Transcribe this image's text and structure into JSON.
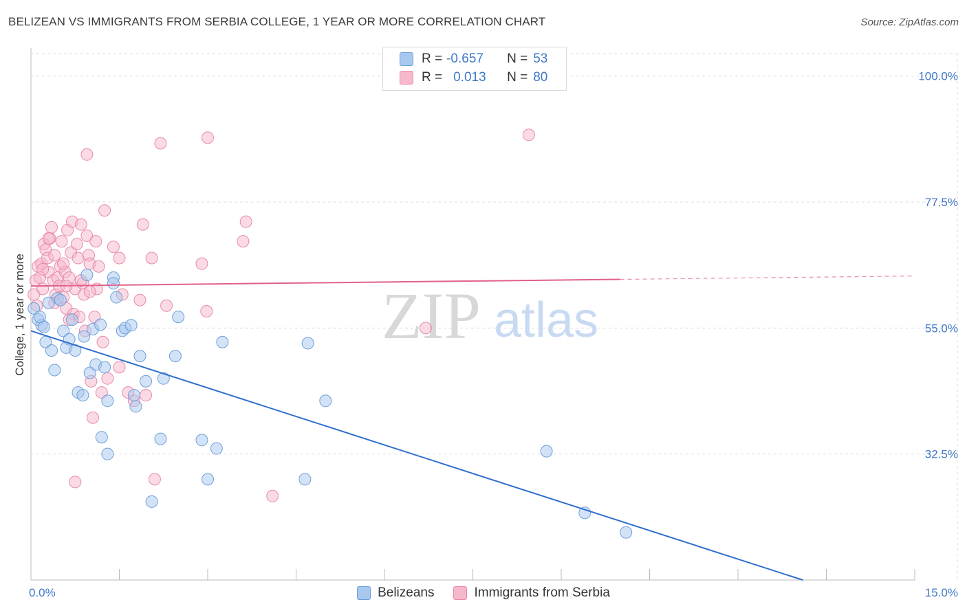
{
  "title": "BELIZEAN VS IMMIGRANTS FROM SERBIA COLLEGE, 1 YEAR OR MORE CORRELATION CHART",
  "source": "Source: ZipAtlas.com",
  "legend": {
    "r_label": "R =",
    "n_label": "N =",
    "series": [
      {
        "name": "Belizeans",
        "r": "-0.657",
        "n": "53"
      },
      {
        "name": "Immigrants from Serbia",
        "r": "0.013",
        "n": "80"
      }
    ]
  },
  "watermark": {
    "zip": "ZIP",
    "atlas": "atlas"
  },
  "colors": {
    "blue_fill": "#a8c8f0",
    "blue_stroke": "#6f9fd8",
    "blue_line": "#2f6fd0",
    "pink_fill": "#f6b8cb",
    "pink_stroke": "#e88aa8",
    "pink_line": "#e0608a",
    "tick_text": "#3f78c8",
    "grid": "#dcdcdc"
  },
  "chart_data": {
    "type": "scatter",
    "title": "BELIZEAN VS IMMIGRANTS FROM SERBIA COLLEGE, 1 YEAR OR MORE CORRELATION CHART",
    "xlabel": "",
    "ylabel": "College, 1 year or more",
    "xlim": [
      0,
      15
    ],
    "ylim": [
      10,
      105
    ],
    "x_tick_labels": [
      "0.0%",
      "15.0%"
    ],
    "y_ticks": [
      100,
      77.5,
      55,
      32.5
    ],
    "y_tick_labels": [
      "100.0%",
      "77.5%",
      "55.0%",
      "32.5%"
    ],
    "series": [
      {
        "name": "Belizeans",
        "color": "blue",
        "points": [
          [
            0.05,
            58.5
          ],
          [
            0.12,
            56.5
          ],
          [
            0.18,
            55.5
          ],
          [
            0.22,
            55.2
          ],
          [
            0.25,
            52.5
          ],
          [
            0.35,
            51.0
          ],
          [
            0.4,
            47.5
          ],
          [
            0.45,
            60.3
          ],
          [
            0.55,
            54.5
          ],
          [
            0.6,
            51.5
          ],
          [
            0.65,
            53.0
          ],
          [
            0.7,
            56.5
          ],
          [
            0.75,
            51.0
          ],
          [
            0.8,
            43.5
          ],
          [
            0.88,
            43.0
          ],
          [
            0.95,
            64.5
          ],
          [
            1.0,
            47.0
          ],
          [
            1.05,
            54.8
          ],
          [
            1.1,
            48.5
          ],
          [
            1.18,
            55.6
          ],
          [
            1.2,
            35.5
          ],
          [
            1.3,
            32.5
          ],
          [
            1.3,
            42.0
          ],
          [
            1.4,
            64.0
          ],
          [
            1.45,
            60.5
          ],
          [
            1.55,
            54.5
          ],
          [
            1.6,
            55.0
          ],
          [
            1.7,
            55.5
          ],
          [
            1.75,
            43.0
          ],
          [
            1.78,
            41.0
          ],
          [
            1.85,
            50.0
          ],
          [
            1.95,
            45.5
          ],
          [
            2.05,
            24.0
          ],
          [
            2.2,
            35.2
          ],
          [
            2.25,
            46.0
          ],
          [
            2.45,
            50.0
          ],
          [
            2.5,
            57.0
          ],
          [
            2.9,
            35.0
          ],
          [
            3.0,
            28.0
          ],
          [
            3.15,
            33.5
          ],
          [
            3.25,
            52.5
          ],
          [
            4.65,
            28.0
          ],
          [
            4.7,
            52.3
          ],
          [
            5.0,
            42.0
          ],
          [
            8.75,
            33.0
          ],
          [
            9.4,
            22.0
          ],
          [
            10.1,
            18.5
          ],
          [
            1.4,
            63.0
          ],
          [
            0.3,
            59.5
          ],
          [
            0.15,
            57.0
          ],
          [
            0.5,
            60.0
          ],
          [
            0.9,
            53.5
          ],
          [
            1.25,
            48.0
          ]
        ]
      },
      {
        "name": "Immigrants from Serbia",
        "color": "pink",
        "points": [
          [
            0.05,
            61.0
          ],
          [
            0.08,
            63.5
          ],
          [
            0.1,
            59.0
          ],
          [
            0.12,
            66.0
          ],
          [
            0.15,
            64.0
          ],
          [
            0.18,
            66.5
          ],
          [
            0.2,
            62.0
          ],
          [
            0.22,
            70.0
          ],
          [
            0.25,
            69.0
          ],
          [
            0.28,
            67.5
          ],
          [
            0.3,
            65.0
          ],
          [
            0.32,
            71.0
          ],
          [
            0.35,
            73.0
          ],
          [
            0.38,
            63.5
          ],
          [
            0.4,
            68.0
          ],
          [
            0.42,
            61.0
          ],
          [
            0.45,
            64.0
          ],
          [
            0.48,
            62.5
          ],
          [
            0.5,
            66.0
          ],
          [
            0.52,
            70.5
          ],
          [
            0.55,
            60.5
          ],
          [
            0.58,
            65.0
          ],
          [
            0.6,
            58.5
          ],
          [
            0.62,
            72.5
          ],
          [
            0.65,
            64.0
          ],
          [
            0.68,
            68.5
          ],
          [
            0.7,
            74.0
          ],
          [
            0.72,
            57.5
          ],
          [
            0.75,
            62.0
          ],
          [
            0.78,
            70.0
          ],
          [
            0.8,
            67.5
          ],
          [
            0.82,
            57.0
          ],
          [
            0.85,
            73.5
          ],
          [
            0.88,
            63.0
          ],
          [
            0.9,
            61.0
          ],
          [
            0.92,
            54.5
          ],
          [
            0.95,
            71.5
          ],
          [
            0.98,
            68.0
          ],
          [
            1.0,
            66.5
          ],
          [
            1.02,
            45.5
          ],
          [
            1.05,
            39.0
          ],
          [
            1.08,
            57.0
          ],
          [
            1.1,
            70.5
          ],
          [
            1.12,
            62.0
          ],
          [
            1.15,
            66.0
          ],
          [
            1.2,
            43.5
          ],
          [
            1.22,
            52.5
          ],
          [
            1.25,
            76.0
          ],
          [
            1.3,
            46.0
          ],
          [
            1.4,
            69.5
          ],
          [
            1.5,
            67.5
          ],
          [
            1.5,
            48.0
          ],
          [
            1.55,
            61.0
          ],
          [
            1.65,
            43.5
          ],
          [
            1.75,
            42.0
          ],
          [
            1.85,
            60.0
          ],
          [
            1.9,
            73.5
          ],
          [
            1.95,
            43.0
          ],
          [
            2.05,
            67.5
          ],
          [
            2.1,
            28.0
          ],
          [
            2.2,
            88.0
          ],
          [
            2.3,
            59.0
          ],
          [
            2.9,
            66.5
          ],
          [
            2.98,
            58.0
          ],
          [
            3.0,
            89.0
          ],
          [
            3.6,
            70.5
          ],
          [
            3.65,
            74.0
          ],
          [
            4.1,
            25.0
          ],
          [
            6.7,
            55.0
          ],
          [
            8.45,
            89.5
          ],
          [
            0.95,
            86.0
          ],
          [
            0.75,
            27.5
          ],
          [
            0.6,
            62.5
          ],
          [
            0.4,
            59.5
          ],
          [
            0.3,
            71.0
          ],
          [
            0.2,
            65.5
          ],
          [
            0.55,
            66.5
          ],
          [
            1.0,
            61.5
          ],
          [
            0.85,
            63.5
          ],
          [
            0.65,
            56.5
          ]
        ]
      }
    ],
    "trend_lines": [
      {
        "series": "Belizeans",
        "x0": 0,
        "y0": 54.5,
        "x1": 13.1,
        "y1": 10,
        "style": "solid"
      },
      {
        "series": "Immigrants from Serbia",
        "x0": 0,
        "y0": 62.5,
        "x1": 10.0,
        "y1": 63.7,
        "style": "solid"
      },
      {
        "series": "Immigrants from Serbia",
        "x0": 10.0,
        "y0": 63.7,
        "x1": 15.0,
        "y1": 64.3,
        "style": "dashed"
      }
    ]
  }
}
